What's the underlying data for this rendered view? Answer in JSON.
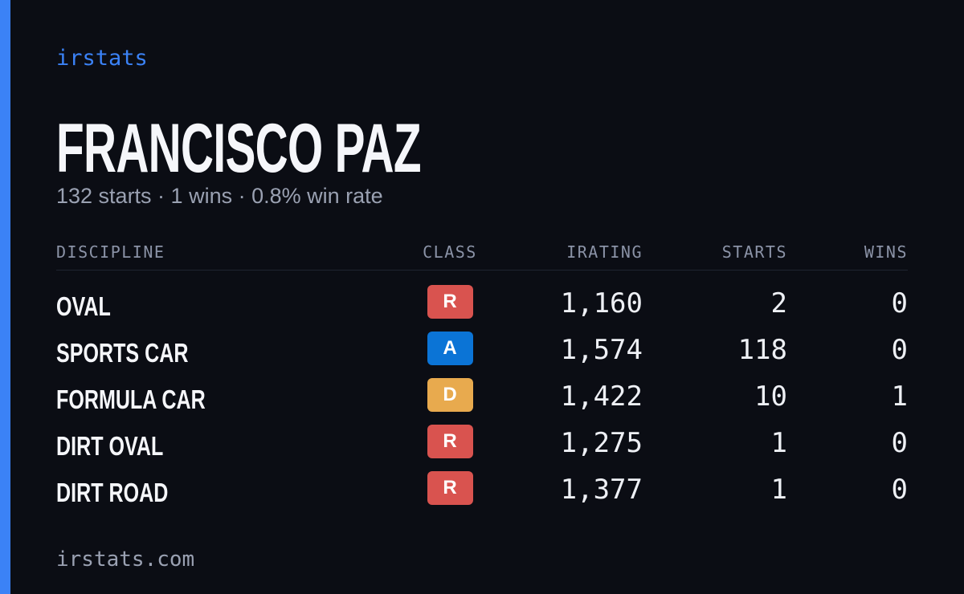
{
  "brand": "irstats",
  "driver": {
    "name": "FRANCISCO PAZ",
    "summary": "132 starts · 1 wins · 0.8% win rate"
  },
  "table": {
    "headers": [
      "DISCIPLINE",
      "CLASS",
      "IRATING",
      "STARTS",
      "WINS"
    ],
    "rows": [
      {
        "discipline": "OVAL",
        "class": "R",
        "class_color": "#d9534f",
        "irating": "1,160",
        "starts": 2,
        "wins": 0
      },
      {
        "discipline": "SPORTS CAR",
        "class": "A",
        "class_color": "#0b74d6",
        "irating": "1,574",
        "starts": 118,
        "wins": 0
      },
      {
        "discipline": "FORMULA CAR",
        "class": "D",
        "class_color": "#e8aa4e",
        "irating": "1,422",
        "starts": 10,
        "wins": 1
      },
      {
        "discipline": "DIRT OVAL",
        "class": "R",
        "class_color": "#d9534f",
        "irating": "1,275",
        "starts": 1,
        "wins": 0
      },
      {
        "discipline": "DIRT ROAD",
        "class": "R",
        "class_color": "#d9534f",
        "irating": "1,377",
        "starts": 1,
        "wins": 0
      }
    ]
  },
  "footer": "irstats.com"
}
